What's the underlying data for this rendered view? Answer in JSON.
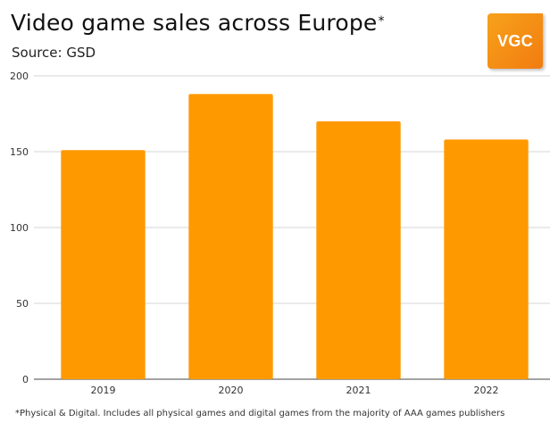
{
  "header": {
    "title": "Video game sales across Europe",
    "title_mark": "*",
    "subtitle": "Source: GSD"
  },
  "logo": {
    "text": "VGC",
    "colors": [
      "#f7a21b",
      "#f27c10"
    ]
  },
  "footnote": "*Physical & Digital. Includes all physical games and digital games from the majority of AAA games publishers",
  "chart_data": {
    "type": "bar",
    "categories": [
      "2019",
      "2020",
      "2021",
      "2022"
    ],
    "values": [
      151,
      188,
      170,
      158
    ],
    "ylim": [
      0,
      200
    ],
    "yticks": [
      0,
      50,
      100,
      150,
      200
    ],
    "grid": true,
    "bar_color": "#ff9900",
    "title": "Video game sales across Europe",
    "xlabel": "",
    "ylabel": ""
  }
}
